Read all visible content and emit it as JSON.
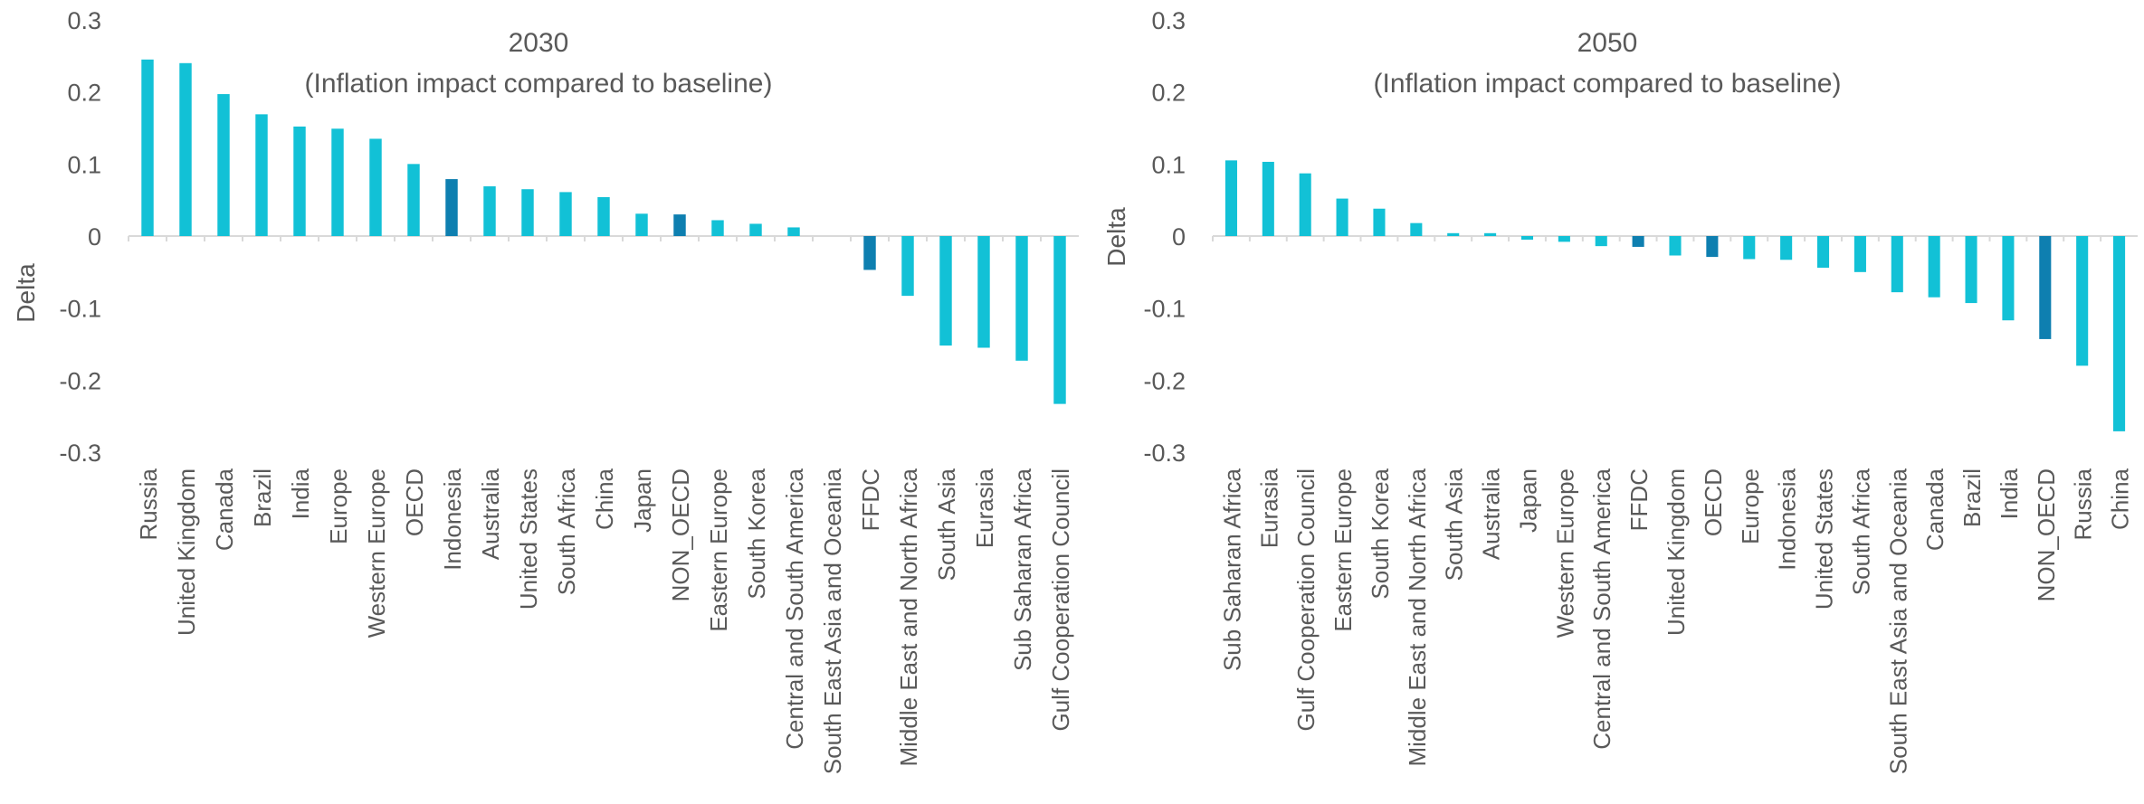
{
  "chart_data": [
    {
      "type": "bar",
      "title": "2030",
      "subtitle": "(Inflation impact compared to baseline)",
      "xlabel": "",
      "ylabel": "Delta",
      "ylim": [
        -0.3,
        0.3
      ],
      "yticks": [
        0.3,
        0.2,
        0.1,
        0,
        -0.1,
        -0.2,
        -0.3
      ],
      "grid": false,
      "legend": "none",
      "colors": {
        "default": "#12C1D6",
        "highlight": "#0E7FB0"
      },
      "categories": [
        "Russia",
        "United Kingdom",
        "Canada",
        "Brazil",
        "India",
        "Europe",
        "Western Europe",
        "OECD",
        "Indonesia",
        "Australia",
        "United States",
        "South Africa",
        "China",
        "Japan",
        "NON_OECD",
        "Eastern Europe",
        "South Korea",
        "Central and South America",
        "South East Asia and Oceania",
        "FFDC",
        "Middle East and North Africa",
        "South Asia",
        "Eurasia",
        "Sub Saharan Africa",
        "Gulf Cooperation Council"
      ],
      "values": [
        0.245,
        0.24,
        0.197,
        0.169,
        0.152,
        0.149,
        0.135,
        0.1,
        0.079,
        0.069,
        0.065,
        0.061,
        0.054,
        0.031,
        0.03,
        0.022,
        0.017,
        0.012,
        0.0,
        -0.047,
        -0.083,
        -0.152,
        -0.155,
        -0.173,
        -0.233
      ],
      "highlighted": [
        "Indonesia",
        "NON_OECD",
        "FFDC"
      ]
    },
    {
      "type": "bar",
      "title": "2050",
      "subtitle": "(Inflation impact compared to baseline)",
      "xlabel": "",
      "ylabel": "Delta",
      "ylim": [
        -0.3,
        0.3
      ],
      "yticks": [
        0.3,
        0.2,
        0.1,
        0,
        -0.1,
        -0.2,
        -0.3
      ],
      "grid": false,
      "legend": "none",
      "colors": {
        "default": "#12C1D6",
        "highlight": "#0E7FB0"
      },
      "categories": [
        "Sub Saharan Africa",
        "Eurasia",
        "Gulf Cooperation Council",
        "Eastern Europe",
        "South Korea",
        "Middle East and North Africa",
        "South Asia",
        "Australia",
        "Japan",
        "Western Europe",
        "Central and South America",
        "FFDC",
        "United Kingdom",
        "OECD",
        "Europe",
        "Indonesia",
        "United States",
        "South Africa",
        "South East Asia and Oceania",
        "Canada",
        "Brazil",
        "India",
        "NON_OECD",
        "Russia",
        "China"
      ],
      "values": [
        0.105,
        0.103,
        0.087,
        0.052,
        0.038,
        0.018,
        0.004,
        0.004,
        -0.005,
        -0.008,
        -0.014,
        -0.015,
        -0.027,
        -0.029,
        -0.032,
        -0.033,
        -0.044,
        -0.05,
        -0.078,
        -0.085,
        -0.093,
        -0.117,
        -0.143,
        -0.18,
        -0.271
      ],
      "highlighted": [
        "FFDC",
        "OECD",
        "NON_OECD"
      ]
    }
  ]
}
